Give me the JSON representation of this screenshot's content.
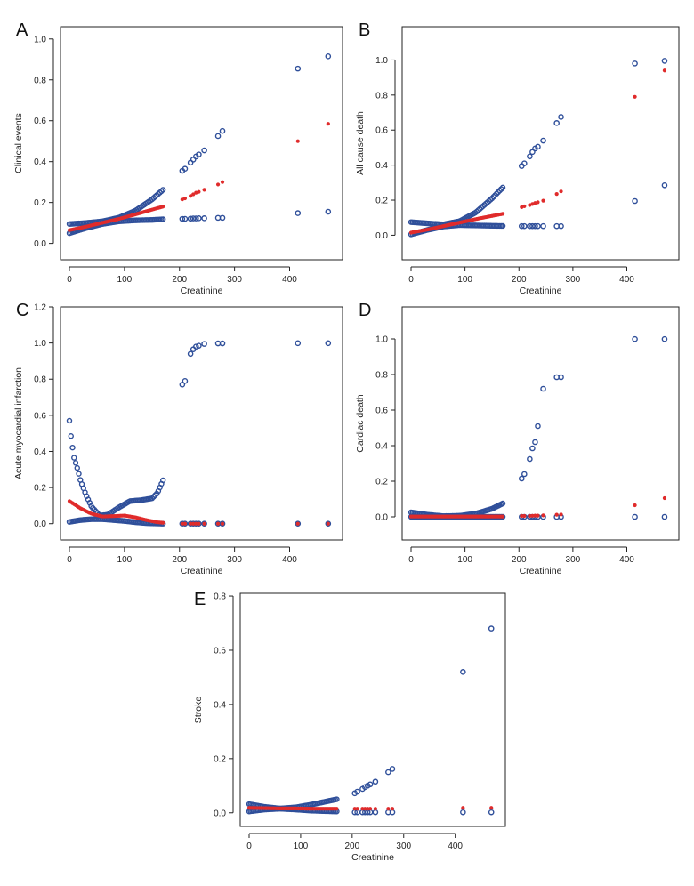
{
  "colors": {
    "ci": "#2f4f9a",
    "estimate": "#e02b2b"
  },
  "chart_data": [
    {
      "type": "scatter",
      "panel": "A",
      "xlabel": "Creatinine",
      "ylabel": "Clinical events",
      "xlim": [
        0,
        480
      ],
      "ylim": [
        -0.08,
        1.06
      ],
      "xticks": [
        0,
        100,
        200,
        300,
        400
      ],
      "yticks": [
        0.0,
        0.2,
        0.4,
        0.6,
        0.8,
        1.0
      ],
      "curves": [
        {
          "series": "upper",
          "x": [
            0,
            30,
            60,
            90,
            120,
            150,
            170
          ],
          "y": [
            0.095,
            0.1,
            0.108,
            0.126,
            0.16,
            0.215,
            0.262
          ]
        },
        {
          "series": "estimate",
          "x": [
            0,
            30,
            60,
            90,
            120,
            150,
            170
          ],
          "y": [
            0.065,
            0.082,
            0.101,
            0.12,
            0.142,
            0.165,
            0.18
          ]
        },
        {
          "series": "lower",
          "x": [
            0,
            30,
            60,
            90,
            120,
            150,
            170
          ],
          "y": [
            0.05,
            0.075,
            0.095,
            0.108,
            0.113,
            0.115,
            0.118
          ]
        }
      ],
      "points": [
        {
          "series": "upper",
          "x": [
            205,
            210,
            220,
            225,
            230,
            235,
            245,
            270,
            278,
            415,
            470
          ],
          "y": [
            0.355,
            0.365,
            0.395,
            0.41,
            0.425,
            0.435,
            0.455,
            0.525,
            0.55,
            0.855,
            0.915
          ]
        },
        {
          "series": "estimate",
          "x": [
            205,
            210,
            220,
            225,
            230,
            235,
            245,
            270,
            278,
            415,
            470
          ],
          "y": [
            0.215,
            0.22,
            0.232,
            0.24,
            0.248,
            0.252,
            0.262,
            0.288,
            0.3,
            0.5,
            0.585
          ]
        },
        {
          "series": "lower",
          "x": [
            205,
            210,
            220,
            225,
            230,
            235,
            245,
            270,
            278,
            415,
            470
          ],
          "y": [
            0.12,
            0.12,
            0.121,
            0.122,
            0.122,
            0.123,
            0.123,
            0.125,
            0.125,
            0.148,
            0.155
          ]
        }
      ]
    },
    {
      "type": "scatter",
      "panel": "B",
      "xlabel": "Creatinine",
      "ylabel": "All cause death",
      "xlim": [
        0,
        480
      ],
      "ylim": [
        -0.14,
        1.19
      ],
      "xticks": [
        0,
        100,
        200,
        300,
        400
      ],
      "yticks": [
        0.0,
        0.2,
        0.4,
        0.6,
        0.8,
        1.0
      ],
      "curves": [
        {
          "series": "upper",
          "x": [
            0,
            30,
            60,
            90,
            120,
            150,
            170
          ],
          "y": [
            0.075,
            0.068,
            0.062,
            0.08,
            0.13,
            0.21,
            0.272
          ]
        },
        {
          "series": "estimate",
          "x": [
            0,
            30,
            60,
            90,
            120,
            150,
            170
          ],
          "y": [
            0.015,
            0.032,
            0.052,
            0.072,
            0.092,
            0.11,
            0.122
          ]
        },
        {
          "series": "lower",
          "x": [
            0,
            30,
            60,
            90,
            120,
            150,
            170
          ],
          "y": [
            0.005,
            0.03,
            0.05,
            0.058,
            0.056,
            0.054,
            0.053
          ]
        }
      ],
      "points": [
        {
          "series": "upper",
          "x": [
            205,
            210,
            220,
            225,
            230,
            235,
            245,
            270,
            278,
            415,
            470
          ],
          "y": [
            0.395,
            0.41,
            0.45,
            0.475,
            0.495,
            0.505,
            0.54,
            0.64,
            0.675,
            0.98,
            0.995
          ]
        },
        {
          "series": "estimate",
          "x": [
            205,
            210,
            220,
            225,
            230,
            235,
            245,
            270,
            278,
            415,
            470
          ],
          "y": [
            0.16,
            0.165,
            0.172,
            0.178,
            0.184,
            0.188,
            0.197,
            0.235,
            0.25,
            0.79,
            0.94
          ]
        },
        {
          "series": "lower",
          "x": [
            205,
            210,
            220,
            225,
            230,
            235,
            245,
            270,
            278,
            415,
            470
          ],
          "y": [
            0.052,
            0.052,
            0.052,
            0.052,
            0.052,
            0.052,
            0.052,
            0.052,
            0.052,
            0.195,
            0.285
          ]
        }
      ]
    },
    {
      "type": "scatter",
      "panel": "C",
      "xlabel": "Creatinine",
      "ylabel": "Acute myocardial infarction",
      "xlim": [
        0,
        480
      ],
      "ylim": [
        -0.09,
        1.2
      ],
      "xticks": [
        0,
        100,
        200,
        300,
        400
      ],
      "yticks": [
        0.0,
        0.2,
        0.4,
        0.6,
        0.8,
        1.0,
        1.2
      ],
      "curves": [
        {
          "series": "upper",
          "x": [
            0,
            3,
            8,
            12,
            15,
            20,
            30,
            40,
            55,
            70,
            90,
            110,
            130,
            150,
            160,
            170
          ],
          "y": [
            0.57,
            0.48,
            0.37,
            0.33,
            0.3,
            0.24,
            0.16,
            0.095,
            0.045,
            0.05,
            0.09,
            0.125,
            0.13,
            0.14,
            0.17,
            0.24
          ]
        },
        {
          "series": "estimate",
          "x": [
            0,
            20,
            40,
            60,
            80,
            100,
            120,
            140,
            160,
            170
          ],
          "y": [
            0.125,
            0.085,
            0.055,
            0.04,
            0.042,
            0.045,
            0.035,
            0.02,
            0.008,
            0.005
          ]
        },
        {
          "series": "lower",
          "x": [
            0,
            20,
            40,
            60,
            80,
            100,
            120,
            140,
            160,
            170
          ],
          "y": [
            0.01,
            0.02,
            0.025,
            0.025,
            0.02,
            0.015,
            0.008,
            0.003,
            0.001,
            0.0
          ]
        }
      ],
      "points": [
        {
          "series": "upper",
          "x": [
            205,
            210,
            220,
            225,
            230,
            235,
            245,
            270,
            278,
            415,
            470
          ],
          "y": [
            0.77,
            0.79,
            0.94,
            0.965,
            0.98,
            0.985,
            0.995,
            0.998,
            0.998,
            0.999,
            0.999
          ]
        },
        {
          "series": "estimate",
          "x": [
            205,
            210,
            220,
            225,
            230,
            235,
            245,
            270,
            278,
            415,
            470
          ],
          "y": [
            0,
            0,
            0,
            0,
            0,
            0,
            0,
            0,
            0,
            0,
            0
          ]
        },
        {
          "series": "lower",
          "x": [
            205,
            210,
            220,
            225,
            230,
            235,
            245,
            270,
            278,
            415,
            470
          ],
          "y": [
            0,
            0,
            0,
            0,
            0,
            0,
            0,
            0,
            0,
            0,
            0
          ]
        }
      ]
    },
    {
      "type": "scatter",
      "panel": "D",
      "xlabel": "Creatinine",
      "ylabel": "Cardiac death",
      "xlim": [
        0,
        480
      ],
      "ylim": [
        -0.13,
        1.18
      ],
      "xticks": [
        0,
        100,
        200,
        300,
        400
      ],
      "yticks": [
        0.0,
        0.2,
        0.4,
        0.6,
        0.8,
        1.0
      ],
      "curves": [
        {
          "series": "upper",
          "x": [
            0,
            30,
            60,
            90,
            120,
            150,
            170
          ],
          "y": [
            0.025,
            0.012,
            0.004,
            0.006,
            0.018,
            0.045,
            0.075
          ]
        },
        {
          "series": "estimate",
          "x": [
            0,
            30,
            60,
            90,
            120,
            150,
            170
          ],
          "y": [
            0.002,
            0.002,
            0.002,
            0.002,
            0.002,
            0.002,
            0.002
          ]
        },
        {
          "series": "lower",
          "x": [
            0,
            30,
            60,
            90,
            120,
            150,
            170
          ],
          "y": [
            0,
            0,
            0,
            0,
            0,
            0,
            0
          ]
        }
      ],
      "points": [
        {
          "series": "upper",
          "x": [
            205,
            210,
            220,
            225,
            230,
            235,
            245,
            270,
            278,
            415,
            470
          ],
          "y": [
            0.215,
            0.24,
            0.325,
            0.385,
            0.42,
            0.51,
            0.72,
            0.785,
            0.785,
            0.999,
            0.999
          ]
        },
        {
          "series": "estimate",
          "x": [
            205,
            210,
            220,
            225,
            230,
            235,
            245,
            270,
            278,
            415,
            470
          ],
          "y": [
            0.005,
            0.005,
            0.005,
            0.006,
            0.007,
            0.007,
            0.008,
            0.012,
            0.013,
            0.065,
            0.105
          ]
        },
        {
          "series": "lower",
          "x": [
            205,
            210,
            220,
            225,
            230,
            235,
            245,
            270,
            278,
            415,
            470
          ],
          "y": [
            0,
            0,
            0,
            0,
            0,
            0,
            0,
            0,
            0,
            0,
            0
          ]
        }
      ]
    },
    {
      "type": "scatter",
      "panel": "E",
      "xlabel": "Creatinine",
      "ylabel": "Stroke",
      "xlim": [
        0,
        480
      ],
      "ylim": [
        -0.05,
        0.81
      ],
      "xticks": [
        0,
        100,
        200,
        300,
        400
      ],
      "yticks": [
        0.0,
        0.2,
        0.4,
        0.6,
        0.8
      ],
      "curves": [
        {
          "series": "upper",
          "x": [
            0,
            30,
            60,
            90,
            120,
            150,
            170
          ],
          "y": [
            0.032,
            0.022,
            0.016,
            0.02,
            0.03,
            0.042,
            0.05
          ]
        },
        {
          "series": "estimate",
          "x": [
            0,
            30,
            60,
            90,
            120,
            150,
            170
          ],
          "y": [
            0.018,
            0.017,
            0.016,
            0.016,
            0.015,
            0.015,
            0.015
          ]
        },
        {
          "series": "lower",
          "x": [
            0,
            30,
            60,
            90,
            120,
            150,
            170
          ],
          "y": [
            0.005,
            0.012,
            0.015,
            0.012,
            0.008,
            0.006,
            0.005
          ]
        }
      ],
      "points": [
        {
          "series": "upper",
          "x": [
            205,
            210,
            220,
            225,
            230,
            235,
            245,
            270,
            278,
            415,
            470
          ],
          "y": [
            0.072,
            0.078,
            0.088,
            0.095,
            0.1,
            0.105,
            0.115,
            0.15,
            0.162,
            0.52,
            0.68
          ]
        },
        {
          "series": "estimate",
          "x": [
            205,
            210,
            220,
            225,
            230,
            235,
            245,
            270,
            278,
            415,
            470
          ],
          "y": [
            0.015,
            0.015,
            0.015,
            0.015,
            0.015,
            0.015,
            0.015,
            0.015,
            0.015,
            0.018,
            0.018
          ]
        },
        {
          "series": "lower",
          "x": [
            205,
            210,
            220,
            225,
            230,
            235,
            245,
            270,
            278,
            415,
            470
          ],
          "y": [
            0.002,
            0.002,
            0.002,
            0.002,
            0.002,
            0.002,
            0.002,
            0.002,
            0.002,
            0.002,
            0.002
          ]
        }
      ]
    }
  ]
}
